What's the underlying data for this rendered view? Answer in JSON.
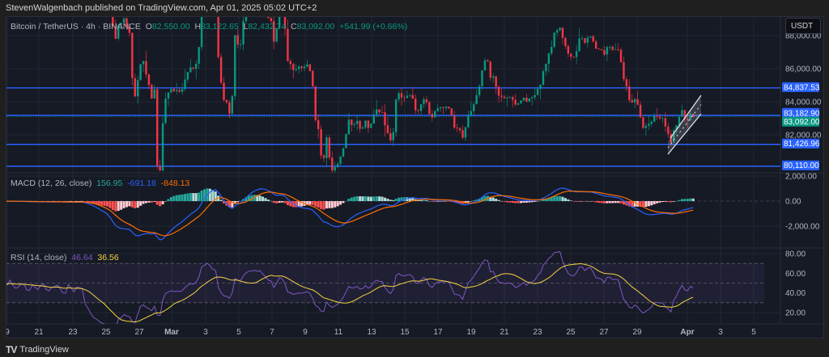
{
  "published": "StevenWalgenbach published on TradingView.com, Apr 01, 2025 05:02 UTC+2",
  "header": {
    "symbol": "Bitcoin / TetherUS · 4h · BINANCE",
    "o_label": "O",
    "o": "82,550.00",
    "h_label": "H",
    "h": "83,122.65",
    "l_label": "L",
    "l": "82,432.74",
    "c_label": "C",
    "c": "83,092.00",
    "change": "+541.99 (+0.66%)"
  },
  "currency": "USDT",
  "price_axis": [
    "88,000.00",
    "86,000.00",
    "84,000.00",
    "82,000.00"
  ],
  "levels": [
    {
      "label": "84,837.53",
      "price": 84837.53,
      "kind": "line"
    },
    {
      "label": "83,182.90",
      "price": 83182.9,
      "kind": "line"
    },
    {
      "label": "83,092.00",
      "price": 83092.0,
      "kind": "last"
    },
    {
      "label": "81,426.96",
      "price": 81426.96,
      "kind": "line"
    },
    {
      "label": "80,110.00",
      "price": 80110.0,
      "kind": "line"
    }
  ],
  "macd": {
    "title": "MACD (12, 26, close)",
    "hist": "156.95",
    "macd": "-691.18",
    "signal": "-848.13",
    "axis": [
      "2,000.00",
      "0.00",
      "-2,000.00"
    ]
  },
  "rsi": {
    "title": "RSI (14, close)",
    "rsi": "46.64",
    "ma": "36.56",
    "axis": [
      "80.00",
      "60.00",
      "40.00",
      "20.00"
    ]
  },
  "time_axis": [
    "9",
    "21",
    "23",
    "25",
    "27",
    "Mar",
    "3",
    "5",
    "7",
    "9",
    "11",
    "13",
    "15",
    "17",
    "19",
    "21",
    "23",
    "25",
    "27",
    "29",
    "Apr",
    "3",
    "5"
  ],
  "colors": {
    "up": "#089981",
    "down": "#f23645",
    "level": "#2962ff",
    "macd": "#2962ff",
    "signal": "#ff6d00",
    "rsi": "#7e57c2",
    "rsi_ma": "#f5d33f"
  },
  "brand": "TradingView",
  "chart_data": {
    "type": "candlestick",
    "title": "Bitcoin / TetherUS · 4h · BINANCE",
    "interval": "4h",
    "ylim": [
      79600,
      89100
    ],
    "last": {
      "open": 82550.0,
      "high": 83122.65,
      "low": 82432.74,
      "close": 83092.0
    },
    "horizontal_levels": [
      84837.53,
      83182.9,
      81426.96,
      80110.0
    ],
    "annotation": "rising channel (bear flag) near Mar 31 – Apr 1",
    "indicators": {
      "macd": {
        "hist": 156.95,
        "macd": -691.18,
        "signal": -848.13
      },
      "rsi": {
        "value": 46.64,
        "ma": 36.56
      }
    }
  }
}
